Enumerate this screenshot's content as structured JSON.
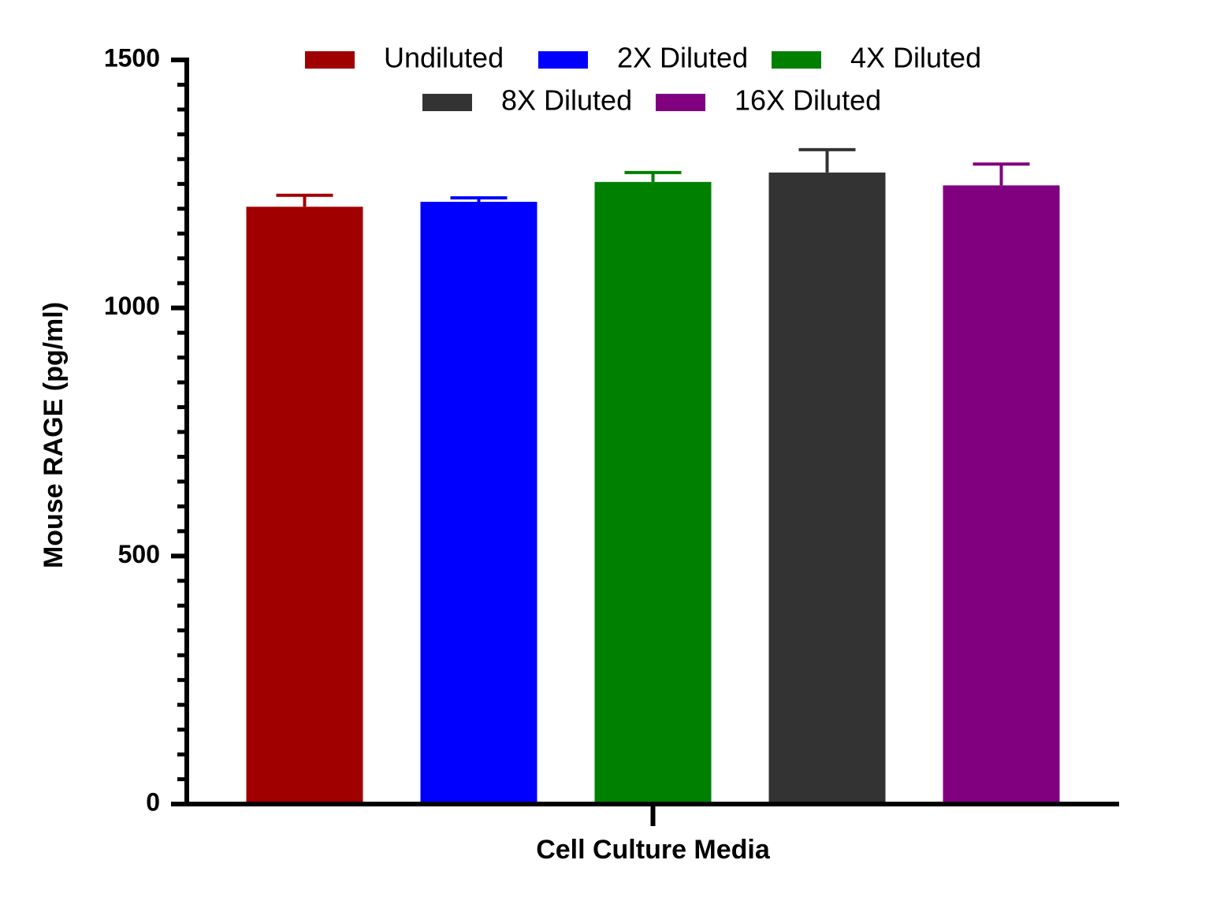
{
  "chart_data": {
    "type": "bar",
    "y_label": "Mouse RAGE (pg/ml)",
    "categories": [
      "Cell Culture Media"
    ],
    "series": [
      {
        "name": "Undiluted",
        "color": "#a00000",
        "values": [
          1204
        ],
        "errors": [
          23
        ]
      },
      {
        "name": "2X Diluted",
        "color": "#0000ff",
        "values": [
          1214
        ],
        "errors": [
          8
        ]
      },
      {
        "name": "4X Diluted",
        "color": "#008000",
        "values": [
          1254
        ],
        "errors": [
          19
        ]
      },
      {
        "name": "8X Diluted",
        "color": "#333333",
        "values": [
          1273
        ],
        "errors": [
          46
        ]
      },
      {
        "name": "16X Diluted",
        "color": "#800080",
        "values": [
          1247
        ],
        "errors": [
          43
        ]
      }
    ],
    "ylim": [
      0,
      1500
    ],
    "yticks": [
      0,
      500,
      1000,
      1500
    ],
    "yminorticks": [
      50,
      100,
      150,
      200,
      250,
      300,
      350,
      400,
      450,
      550,
      600,
      650,
      700,
      750,
      800,
      850,
      900,
      950,
      1050,
      1100,
      1150,
      1200,
      1250,
      1300,
      1350,
      1400,
      1450
    ],
    "legend": "top"
  }
}
